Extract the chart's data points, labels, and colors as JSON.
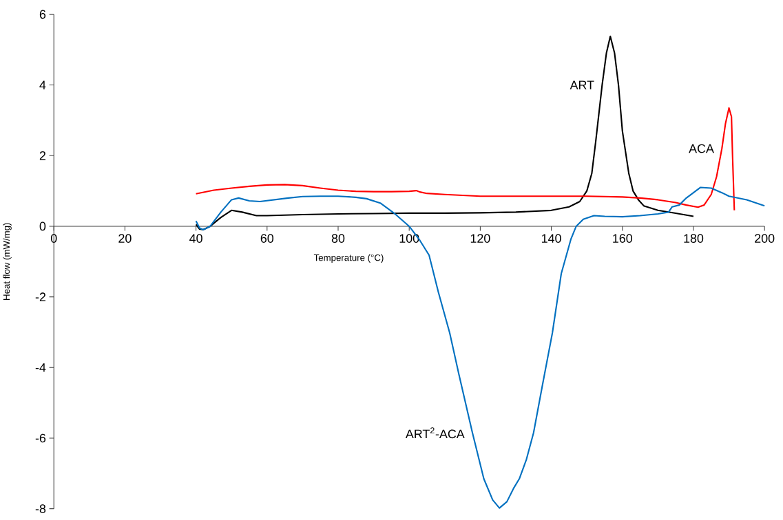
{
  "chart_data": {
    "type": "line",
    "xlabel": "Temperature (°C)",
    "ylabel": "Heat flow (mW/mg)",
    "xlim": [
      0,
      200
    ],
    "ylim": [
      -8,
      6
    ],
    "xticks": [
      0,
      20,
      40,
      60,
      80,
      100,
      120,
      140,
      160,
      180,
      200
    ],
    "yticks": [
      -8,
      -6,
      -4,
      -2,
      0,
      2,
      4,
      6
    ],
    "grid": false,
    "marker": "none",
    "line_style": "solid",
    "series": [
      {
        "name": "ART",
        "color": "#000000",
        "x": [
          40,
          41,
          42,
          44,
          47,
          50,
          53,
          57,
          60,
          70,
          80,
          90,
          100,
          110,
          120,
          130,
          140,
          145,
          148,
          150,
          151.4,
          152.5,
          154.3,
          155.5,
          156.6,
          157.8,
          158.9,
          160,
          161.8,
          163,
          164.5,
          166,
          170,
          175,
          180
        ],
        "values": [
          0.05,
          -0.08,
          -0.1,
          0.0,
          0.25,
          0.45,
          0.4,
          0.3,
          0.3,
          0.33,
          0.35,
          0.36,
          0.37,
          0.37,
          0.38,
          0.4,
          0.45,
          0.55,
          0.7,
          1.0,
          1.5,
          2.4,
          4.0,
          4.9,
          5.38,
          4.9,
          4.0,
          2.7,
          1.5,
          1.0,
          0.75,
          0.58,
          0.45,
          0.37,
          0.28
        ]
      },
      {
        "name": "ACA",
        "color": "#ff0000",
        "x": [
          40,
          45,
          50,
          55,
          60,
          65,
          70,
          75,
          80,
          85,
          90,
          95,
          100,
          102,
          103,
          105,
          110,
          120,
          130,
          140,
          150,
          160,
          165,
          170,
          175,
          178,
          181.3,
          183,
          185,
          186.5,
          188,
          189,
          190,
          190.7,
          191,
          191.5
        ],
        "values": [
          0.92,
          1.02,
          1.08,
          1.13,
          1.17,
          1.18,
          1.15,
          1.08,
          1.02,
          0.99,
          0.98,
          0.98,
          0.99,
          1.01,
          0.97,
          0.93,
          0.9,
          0.85,
          0.85,
          0.85,
          0.85,
          0.83,
          0.8,
          0.75,
          0.67,
          0.6,
          0.54,
          0.6,
          0.9,
          1.4,
          2.2,
          2.9,
          3.35,
          3.1,
          2.0,
          0.45
        ]
      },
      {
        "name": "ART$^{2}$-ACA",
        "color": "#0070c0",
        "x": [
          40,
          41,
          42,
          44,
          47,
          50,
          52,
          55,
          58,
          62,
          66,
          70,
          75,
          80,
          85,
          88,
          92,
          96,
          100,
          103,
          105.6,
          108.2,
          111.4,
          114,
          117.8,
          121,
          123.5,
          125.4,
          127.5,
          129.5,
          131,
          133,
          135,
          137.5,
          140.3,
          142.8,
          145.5,
          147,
          149,
          152,
          155,
          160,
          165,
          170,
          173,
          174,
          176,
          178,
          180,
          182,
          185,
          188,
          190,
          195,
          200
        ],
        "values": [
          0.15,
          -0.05,
          -0.1,
          0.0,
          0.4,
          0.75,
          0.8,
          0.72,
          0.7,
          0.75,
          0.8,
          0.84,
          0.85,
          0.85,
          0.82,
          0.78,
          0.65,
          0.35,
          0.0,
          -0.4,
          -0.82,
          -1.86,
          -3.02,
          -4.2,
          -5.85,
          -7.15,
          -7.75,
          -7.98,
          -7.8,
          -7.4,
          -7.15,
          -6.6,
          -5.85,
          -4.5,
          -3.02,
          -1.34,
          -0.37,
          0.0,
          0.2,
          0.3,
          0.28,
          0.27,
          0.3,
          0.35,
          0.4,
          0.55,
          0.6,
          0.8,
          0.95,
          1.1,
          1.08,
          0.95,
          0.85,
          0.75,
          0.58
        ]
      }
    ]
  }
}
